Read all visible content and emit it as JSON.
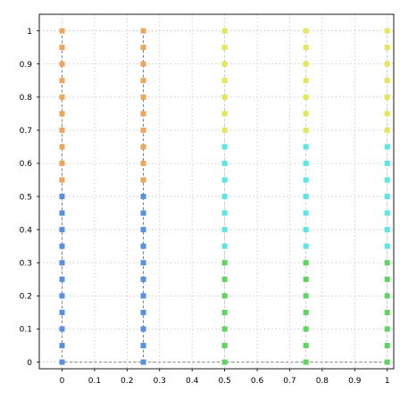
{
  "chart_data": {
    "type": "scatter",
    "title": "",
    "xlabel": "",
    "ylabel": "",
    "xlim": [
      -0.07,
      1.02
    ],
    "ylim": [
      -0.02,
      1.05
    ],
    "grid": true,
    "x_ticks": [
      0,
      0.1,
      0.2,
      0.3,
      0.4,
      0.5,
      0.6,
      0.7,
      0.8,
      0.9,
      1
    ],
    "x_tick_labels": [
      "0",
      "0.1",
      "0.2",
      "0.3",
      "0.4",
      "0.5",
      "0.6",
      "0.7",
      "0.8",
      "0.9",
      "1"
    ],
    "y_ticks": [
      0,
      0.1,
      0.2,
      0.3,
      0.4,
      0.5,
      0.6,
      0.7,
      0.8,
      0.9,
      1
    ],
    "y_tick_labels": [
      "0",
      "0.1",
      "0.2",
      "0.3",
      "0.4",
      "0.5",
      "0.6",
      "0.7",
      "0.8",
      "0.9",
      "1"
    ],
    "series": [
      {
        "x": 0,
        "y": [
          0,
          0.05,
          0.1,
          0.15,
          0.2,
          0.25,
          0.3,
          0.35,
          0.4,
          0.45,
          0.5,
          0.55,
          0.6,
          0.65,
          0.7,
          0.75,
          0.8,
          0.85,
          0.9,
          0.95,
          1
        ],
        "colors": [
          "#5b8fe0",
          "#5b8fe0",
          "#5b8fe0",
          "#5b8fe0",
          "#5b8fe0",
          "#5b8fe0",
          "#5b8fe0",
          "#5b8fe0",
          "#5b8fe0",
          "#5b8fe0",
          "#5b8fe0",
          "#eba75e",
          "#eba75e",
          "#eba75e",
          "#eba75e",
          "#eba75e",
          "#eba75e",
          "#eba75e",
          "#eba75e",
          "#eba75e",
          "#eba75e"
        ]
      },
      {
        "x": 0.25,
        "y": [
          0,
          0.05,
          0.1,
          0.15,
          0.2,
          0.25,
          0.3,
          0.35,
          0.4,
          0.45,
          0.5,
          0.55,
          0.6,
          0.65,
          0.7,
          0.75,
          0.8,
          0.85,
          0.9,
          0.95,
          1
        ],
        "colors": [
          "#5b8fe0",
          "#5b8fe0",
          "#5b8fe0",
          "#5b8fe0",
          "#5b8fe0",
          "#5b8fe0",
          "#5b8fe0",
          "#5b8fe0",
          "#5b8fe0",
          "#5b8fe0",
          "#5b8fe0",
          "#eba75e",
          "#eba75e",
          "#eba75e",
          "#eba75e",
          "#eba75e",
          "#eba75e",
          "#eba75e",
          "#eba75e",
          "#eba75e",
          "#eba75e"
        ]
      },
      {
        "x": 0.5,
        "y": [
          0,
          0.05,
          0.1,
          0.15,
          0.2,
          0.25,
          0.3,
          0.35,
          0.4,
          0.45,
          0.5,
          0.55,
          0.6,
          0.65,
          0.7,
          0.75,
          0.8,
          0.85,
          0.9,
          0.95,
          1
        ],
        "colors": [
          "#5ed65e",
          "#5ed65e",
          "#5ed65e",
          "#5ed65e",
          "#5ed65e",
          "#5ed65e",
          "#5ed65e",
          "#5de6e6",
          "#5de6e6",
          "#5de6e6",
          "#5de6e6",
          "#5de6e6",
          "#5de6e6",
          "#5de6e6",
          "#e6e65a",
          "#e6e65a",
          "#e6e65a",
          "#e6e65a",
          "#e6e65a",
          "#e6e65a",
          "#e6e65a"
        ]
      },
      {
        "x": 0.75,
        "y": [
          0,
          0.05,
          0.1,
          0.15,
          0.2,
          0.25,
          0.3,
          0.35,
          0.4,
          0.45,
          0.5,
          0.55,
          0.6,
          0.65,
          0.7,
          0.75,
          0.8,
          0.85,
          0.9,
          0.95,
          1
        ],
        "colors": [
          "#5ed65e",
          "#5ed65e",
          "#5ed65e",
          "#5ed65e",
          "#5ed65e",
          "#5ed65e",
          "#5ed65e",
          "#5de6e6",
          "#5de6e6",
          "#5de6e6",
          "#5de6e6",
          "#5de6e6",
          "#5de6e6",
          "#5de6e6",
          "#e6e65a",
          "#e6e65a",
          "#e6e65a",
          "#e6e65a",
          "#e6e65a",
          "#e6e65a",
          "#e6e65a"
        ]
      },
      {
        "x": 1,
        "y": [
          0,
          0.05,
          0.1,
          0.15,
          0.2,
          0.25,
          0.3,
          0.35,
          0.4,
          0.45,
          0.5,
          0.55,
          0.6,
          0.65,
          0.7,
          0.75,
          0.8,
          0.85,
          0.9,
          0.95,
          1
        ],
        "colors": [
          "#5ed65e",
          "#5ed65e",
          "#5ed65e",
          "#5ed65e",
          "#5ed65e",
          "#5ed65e",
          "#5ed65e",
          "#5de6e6",
          "#5de6e6",
          "#5de6e6",
          "#5de6e6",
          "#5de6e6",
          "#5de6e6",
          "#5de6e6",
          "#e6e65a",
          "#e6e65a",
          "#e6e65a",
          "#e6e65a",
          "#e6e65a",
          "#e6e65a",
          "#e6e65a"
        ]
      }
    ],
    "lines": [
      {
        "points": [
          [
            0,
            1
          ],
          [
            0,
            0
          ],
          [
            1,
            0
          ]
        ],
        "color": "#7a7a7a"
      },
      {
        "points": [
          [
            0.25,
            0
          ],
          [
            0.25,
            1
          ]
        ],
        "color": "#3a6fd0"
      },
      {
        "points": [
          [
            0.5,
            0
          ],
          [
            0.5,
            1
          ]
        ],
        "color": "#c9c9c9"
      },
      {
        "points": [
          [
            0.75,
            0
          ],
          [
            0.75,
            1
          ]
        ],
        "color": "#c9c9c9"
      },
      {
        "points": [
          [
            1,
            0
          ],
          [
            1,
            1
          ]
        ],
        "color": "#c9c9c9"
      }
    ]
  }
}
